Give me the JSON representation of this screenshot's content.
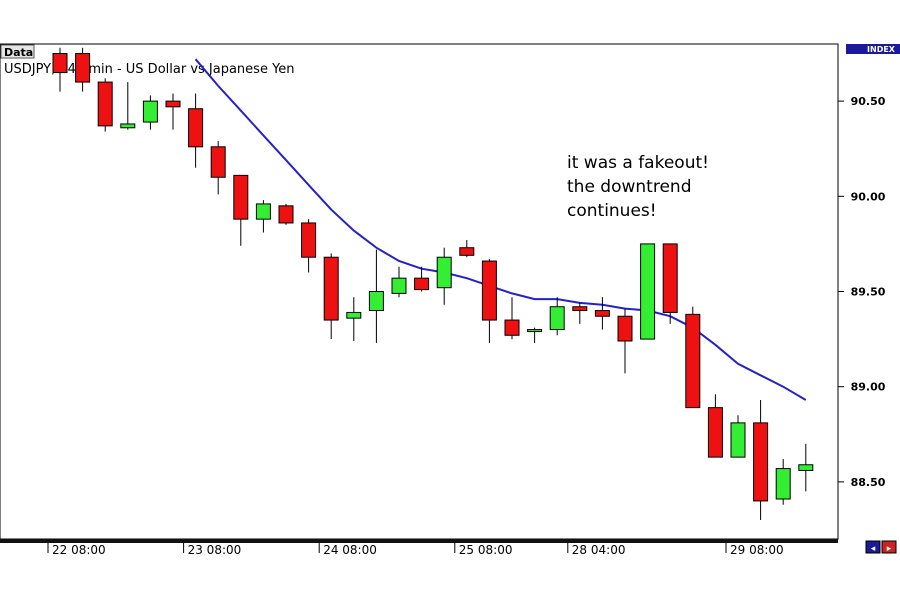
{
  "header": {
    "data_label": "Data",
    "title": "USDJPY, 240 min - US Dollar vs Japanese Yen",
    "index_label": "INDEX"
  },
  "annotation": [
    "it was a fakeout!",
    "the downtrend",
    "continues!"
  ],
  "colors": {
    "bull": "#33ee33",
    "bear": "#ee1111",
    "ma": "#2222cc",
    "axis_bar": "#111111"
  },
  "chart_data": {
    "type": "candlestick",
    "title": "USDJPY, 240 min - US Dollar vs Japanese Yen",
    "ylim": [
      88.2,
      90.8
    ],
    "y_ticks": [
      "90.50",
      "90.00",
      "89.50",
      "89.00",
      "88.50"
    ],
    "y_tick_values": [
      90.5,
      90.0,
      89.5,
      89.0,
      88.5
    ],
    "x_tick_labels": [
      "22 08:00",
      "23 08:00",
      "24 08:00",
      "25 08:00",
      "28 04:00",
      "29 08:00"
    ],
    "x_tick_candle_index": [
      0,
      6,
      12,
      18,
      23,
      30
    ],
    "candles": [
      {
        "o": 90.75,
        "h": 90.78,
        "l": 90.55,
        "c": 90.65
      },
      {
        "o": 90.75,
        "h": 90.78,
        "l": 90.55,
        "c": 90.6
      },
      {
        "o": 90.6,
        "h": 90.62,
        "l": 90.34,
        "c": 90.37
      },
      {
        "o": 90.36,
        "h": 90.6,
        "l": 90.35,
        "c": 90.38
      },
      {
        "o": 90.39,
        "h": 90.53,
        "l": 90.35,
        "c": 90.5
      },
      {
        "o": 90.5,
        "h": 90.54,
        "l": 90.35,
        "c": 90.47
      },
      {
        "o": 90.46,
        "h": 90.54,
        "l": 90.15,
        "c": 90.26
      },
      {
        "o": 90.26,
        "h": 90.29,
        "l": 90.01,
        "c": 90.1
      },
      {
        "o": 90.11,
        "h": 90.11,
        "l": 89.74,
        "c": 89.88
      },
      {
        "o": 89.88,
        "h": 89.98,
        "l": 89.81,
        "c": 89.96
      },
      {
        "o": 89.95,
        "h": 89.96,
        "l": 89.85,
        "c": 89.86
      },
      {
        "o": 89.86,
        "h": 89.88,
        "l": 89.6,
        "c": 89.68
      },
      {
        "o": 89.68,
        "h": 89.7,
        "l": 89.25,
        "c": 89.35
      },
      {
        "o": 89.36,
        "h": 89.47,
        "l": 89.24,
        "c": 89.39
      },
      {
        "o": 89.4,
        "h": 89.72,
        "l": 89.23,
        "c": 89.5
      },
      {
        "o": 89.49,
        "h": 89.63,
        "l": 89.47,
        "c": 89.57
      },
      {
        "o": 89.57,
        "h": 89.63,
        "l": 89.5,
        "c": 89.51
      },
      {
        "o": 89.52,
        "h": 89.73,
        "l": 89.43,
        "c": 89.68
      },
      {
        "o": 89.73,
        "h": 89.77,
        "l": 89.68,
        "c": 89.69
      },
      {
        "o": 89.66,
        "h": 89.67,
        "l": 89.23,
        "c": 89.35
      },
      {
        "o": 89.35,
        "h": 89.47,
        "l": 89.25,
        "c": 89.27
      },
      {
        "o": 89.29,
        "h": 89.31,
        "l": 89.23,
        "c": 89.3
      },
      {
        "o": 89.3,
        "h": 89.47,
        "l": 89.27,
        "c": 89.42
      },
      {
        "o": 89.42,
        "h": 89.44,
        "l": 89.33,
        "c": 89.4
      },
      {
        "o": 89.4,
        "h": 89.47,
        "l": 89.3,
        "c": 89.37
      },
      {
        "o": 89.37,
        "h": 89.41,
        "l": 89.07,
        "c": 89.24
      },
      {
        "o": 89.25,
        "h": 89.75,
        "l": 89.25,
        "c": 89.75
      },
      {
        "o": 89.75,
        "h": 89.75,
        "l": 89.33,
        "c": 89.39
      },
      {
        "o": 89.38,
        "h": 89.42,
        "l": 88.89,
        "c": 88.89
      },
      {
        "o": 88.89,
        "h": 88.96,
        "l": 88.63,
        "c": 88.63
      },
      {
        "o": 88.63,
        "h": 88.85,
        "l": 88.63,
        "c": 88.81
      },
      {
        "o": 88.81,
        "h": 88.93,
        "l": 88.3,
        "c": 88.4
      },
      {
        "o": 88.41,
        "h": 88.62,
        "l": 88.38,
        "c": 88.57
      },
      {
        "o": 88.56,
        "h": 88.7,
        "l": 88.45,
        "c": 88.59
      }
    ],
    "moving_average": [
      null,
      null,
      null,
      null,
      null,
      null,
      90.72,
      90.58,
      90.45,
      90.32,
      90.19,
      90.06,
      89.93,
      89.82,
      89.73,
      89.66,
      89.62,
      89.6,
      89.57,
      89.53,
      89.49,
      89.46,
      89.46,
      89.44,
      89.43,
      89.41,
      89.4,
      89.37,
      89.31,
      89.22,
      89.12,
      89.06,
      89.0,
      88.93
    ]
  }
}
